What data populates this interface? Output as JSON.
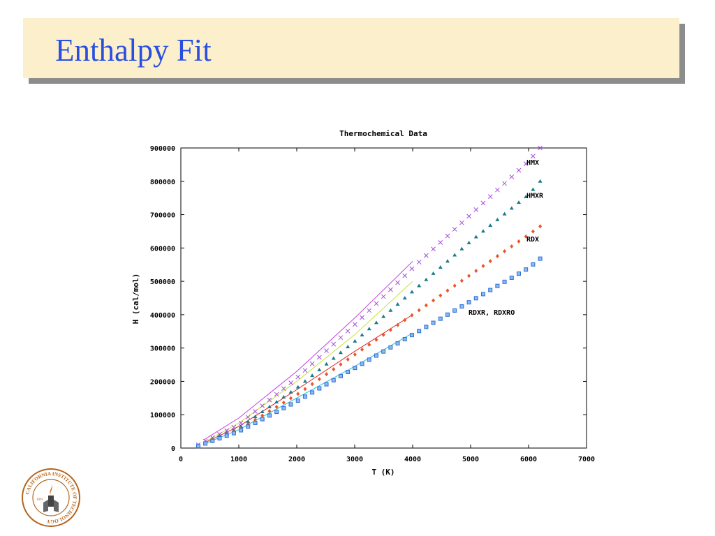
{
  "slide": {
    "title": "Enthalpy Fit"
  },
  "logo": {
    "ring_text": "CALIFORNIA INSTITUTE OF TECHNOLOGY",
    "year": "1891",
    "color": "#b5651d"
  },
  "chart_data": {
    "type": "scatter",
    "title": "Thermochemical Data",
    "xlabel": "T (K)",
    "ylabel": "H (cal/mol)",
    "xlim": [
      0,
      7000
    ],
    "ylim": [
      0,
      900000
    ],
    "xticks": [
      0,
      1000,
      2000,
      3000,
      4000,
      5000,
      6000,
      7000
    ],
    "yticks": [
      0,
      100000,
      200000,
      300000,
      400000,
      500000,
      600000,
      700000,
      800000,
      900000
    ],
    "xtick_labels": [
      "0",
      "1000",
      "2000",
      "3000",
      "4000",
      "5000",
      "6000",
      "7000"
    ],
    "ytick_labels": [
      "0",
      "100000",
      "200000",
      "300000",
      "400000",
      "500000",
      "600000",
      "700000",
      "800000",
      "900000"
    ],
    "grid": false,
    "annotations": [
      {
        "text": "HMX",
        "x": 6000,
        "y": 850000
      },
      {
        "text": "HMXR",
        "x": 6000,
        "y": 750000
      },
      {
        "text": "RDX",
        "x": 6000,
        "y": 620000
      },
      {
        "text": "RDXR, RDXRO",
        "x": 5000,
        "y": 400000
      }
    ],
    "series": [
      {
        "name": "HMX",
        "marker": "x",
        "color": "#a34ce0",
        "x": [
          300,
          1000,
          2000,
          3000,
          4000,
          5000,
          6000,
          6200
        ],
        "y": [
          10000,
          70000,
          210000,
          370000,
          540000,
          700000,
          860000,
          900000
        ]
      },
      {
        "name": "HMXR",
        "marker": "triangle",
        "color": "#1a7a8a",
        "x": [
          300,
          1000,
          2000,
          3000,
          4000,
          5000,
          6000,
          6200
        ],
        "y": [
          8000,
          60000,
          180000,
          320000,
          470000,
          620000,
          760000,
          800000
        ]
      },
      {
        "name": "RDX",
        "marker": "diamond",
        "color": "#e8552a",
        "x": [
          300,
          1000,
          2000,
          3000,
          4000,
          5000,
          6000,
          6200
        ],
        "y": [
          7000,
          55000,
          160000,
          280000,
          400000,
          520000,
          640000,
          665000
        ]
      },
      {
        "name": "RDXR, RDXRO",
        "marker": "square",
        "color": "#2a6fd6",
        "x": [
          300,
          1000,
          2000,
          3000,
          4000,
          5000,
          6000,
          6200
        ],
        "y": [
          6000,
          50000,
          140000,
          240000,
          340000,
          440000,
          540000,
          568000
        ]
      }
    ],
    "fits": [
      {
        "color": "#c040e0",
        "x": [
          400,
          1000,
          2000,
          3000,
          4000
        ],
        "y": [
          25000,
          90000,
          230000,
          390000,
          560000
        ]
      },
      {
        "color": "#c8e040",
        "x": [
          400,
          1000,
          2000,
          3000,
          4000
        ],
        "y": [
          18000,
          75000,
          200000,
          340000,
          500000
        ]
      },
      {
        "color": "#e02020",
        "x": [
          400,
          1000,
          2000,
          3000,
          4000
        ],
        "y": [
          15000,
          65000,
          175000,
          290000,
          400000
        ]
      },
      {
        "color": "#20c0d0",
        "x": [
          400,
          1000,
          2000,
          3000,
          4000
        ],
        "y": [
          12000,
          55000,
          150000,
          245000,
          345000
        ]
      }
    ]
  }
}
